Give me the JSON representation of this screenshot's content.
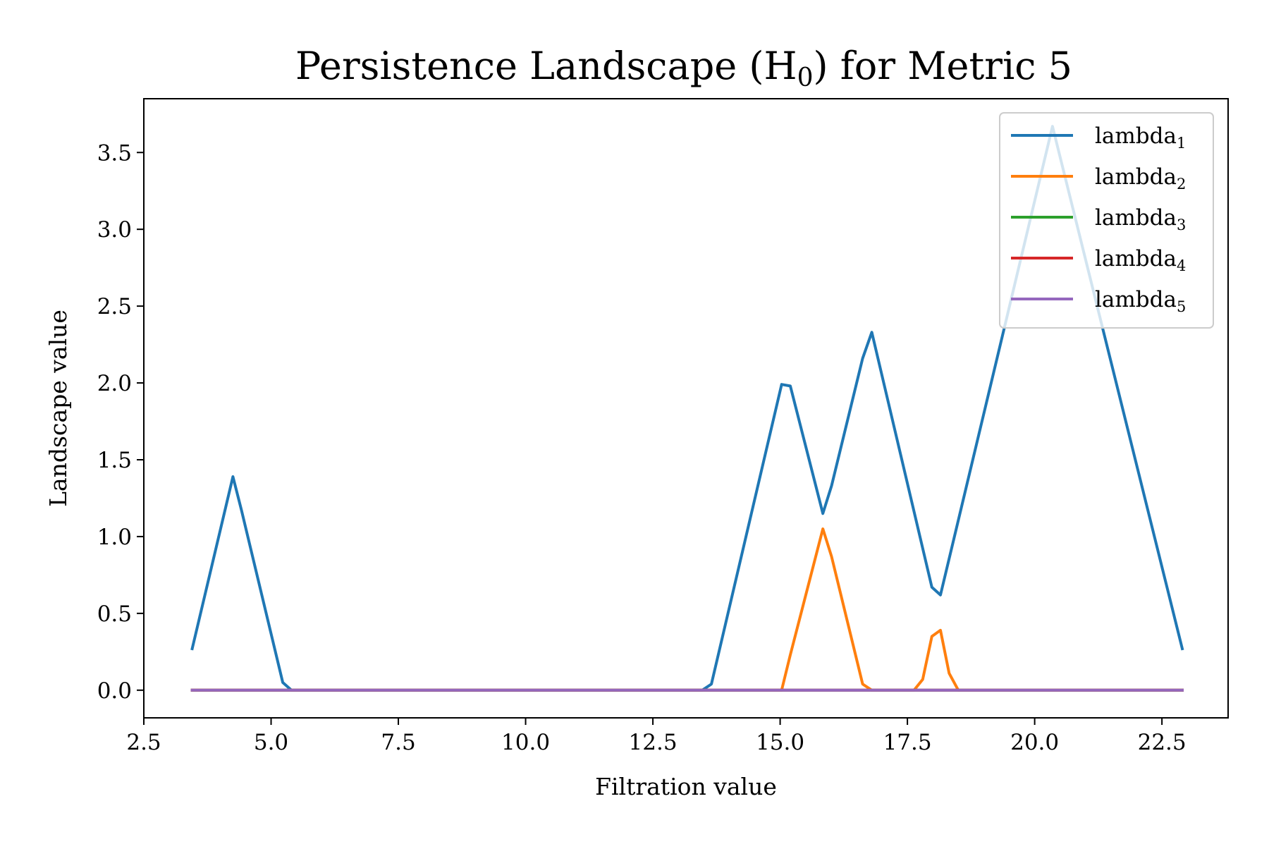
{
  "chart_data": {
    "type": "line",
    "title": "Persistence Landscape (H",
    "title_subscript": "0",
    "title_suffix": ") for Metric 5",
    "xlabel": "Filtration value",
    "ylabel": "Landscape value",
    "xlim": [
      2.5,
      23.8
    ],
    "ylim": [
      -0.18,
      3.85
    ],
    "xticks": [
      2.5,
      5.0,
      7.5,
      10.0,
      12.5,
      15.0,
      17.5,
      20.0,
      22.5
    ],
    "xtick_labels": [
      "2.5",
      "5.0",
      "7.5",
      "10.0",
      "12.5",
      "15.0",
      "17.5",
      "20.0",
      "22.5"
    ],
    "yticks": [
      0.0,
      0.5,
      1.0,
      1.5,
      2.0,
      2.5,
      3.0,
      3.5
    ],
    "ytick_labels": [
      "0.0",
      "0.5",
      "1.0",
      "1.5",
      "2.0",
      "2.5",
      "3.0",
      "3.5"
    ],
    "grid": false,
    "legend_position": "top-right",
    "series": [
      {
        "name": "lambda",
        "subscript": "1",
        "color": "#1f77b4",
        "x": [
          3.45,
          4.25,
          4.42,
          5.23,
          5.4,
          13.47,
          13.65,
          15.03,
          15.2,
          15.84,
          16.01,
          16.62,
          16.8,
          17.98,
          18.15,
          20.35,
          22.9
        ],
        "y": [
          0.27,
          1.39,
          1.17,
          0.05,
          0.0,
          0.0,
          0.04,
          1.99,
          1.98,
          1.15,
          1.33,
          2.16,
          2.33,
          0.67,
          0.62,
          3.67,
          0.27
        ]
      },
      {
        "name": "lambda",
        "subscript": "2",
        "color": "#ff7f0e",
        "x": [
          3.45,
          15.03,
          15.2,
          15.84,
          16.01,
          16.62,
          16.8,
          17.63,
          17.8,
          17.98,
          18.15,
          18.32,
          18.5,
          22.9
        ],
        "y": [
          0.0,
          0.0,
          0.23,
          1.05,
          0.87,
          0.04,
          0.0,
          0.0,
          0.07,
          0.35,
          0.39,
          0.11,
          0.0,
          0.0
        ]
      },
      {
        "name": "lambda",
        "subscript": "3",
        "color": "#2ca02c",
        "x": [
          3.45,
          22.9
        ],
        "y": [
          0.0,
          0.0
        ]
      },
      {
        "name": "lambda",
        "subscript": "4",
        "color": "#d62728",
        "x": [
          3.45,
          22.9
        ],
        "y": [
          0.0,
          0.0
        ]
      },
      {
        "name": "lambda",
        "subscript": "5",
        "color": "#9467bd",
        "x": [
          3.45,
          22.9
        ],
        "y": [
          0.0,
          0.0
        ]
      }
    ]
  }
}
